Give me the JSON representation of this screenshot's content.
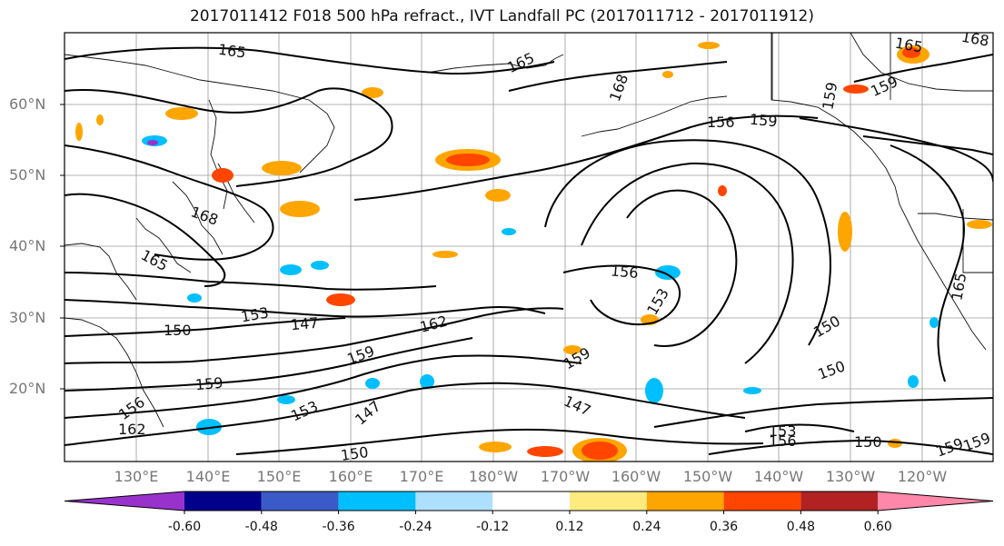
{
  "title": "2017011412 F018 500 hPa refract., IVT Landfall PC (2017011712 - 2017011912)",
  "lat_ticks": [
    "60°N",
    "50°N",
    "40°N",
    "30°N",
    "20°N"
  ],
  "lon_ticks": [
    "130°E",
    "140°E",
    "150°E",
    "160°E",
    "170°E",
    "180°W",
    "170°W",
    "160°W",
    "150°W",
    "140°W",
    "130°W",
    "120°W"
  ],
  "contour_labels": [
    "165",
    "165",
    "168",
    "168",
    "165",
    "165",
    "159",
    "156",
    "159",
    "159",
    "168",
    "165",
    "153",
    "147",
    "150",
    "162",
    "159",
    "159",
    "156",
    "153",
    "150",
    "159",
    "156",
    "162",
    "147",
    "150",
    "147",
    "150",
    "153",
    "156",
    "150",
    "159",
    "159",
    "153"
  ],
  "colorbar": {
    "colors": [
      "#9932CC",
      "#00008B",
      "#3A5BC7",
      "#00BFFF",
      "#ADDFFF",
      "#FFFFFF",
      "#FFEA80",
      "#FFA500",
      "#FF4500",
      "#B22222",
      "#FF88AA"
    ],
    "tick_labels": [
      "-0.60",
      "-0.48",
      "-0.36",
      "-0.24",
      "-0.12",
      "0.12",
      "0.24",
      "0.36",
      "0.48",
      "0.60"
    ]
  }
}
